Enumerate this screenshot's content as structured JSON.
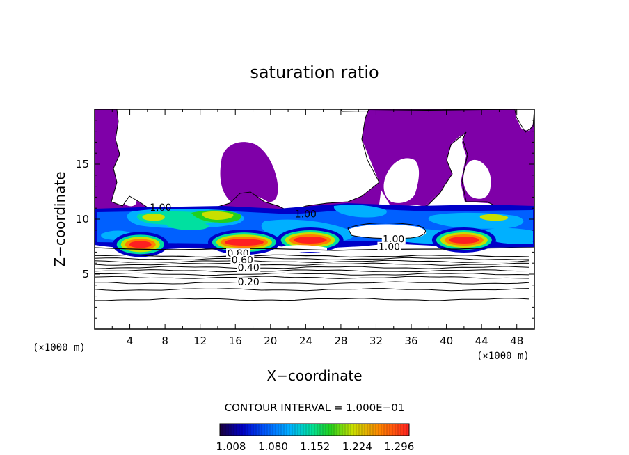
{
  "chart_data": {
    "type": "heatmap",
    "title": "saturation ratio",
    "xlabel": "X−coordinate",
    "ylabel": "Z−coordinate",
    "x_unit": "(×1000 m)",
    "y_unit": "(×1000 m)",
    "xlim": [
      0,
      50
    ],
    "ylim": [
      0,
      20
    ],
    "x_ticks": [
      4,
      8,
      12,
      16,
      20,
      24,
      28,
      32,
      36,
      40,
      44,
      48
    ],
    "y_ticks": [
      5,
      10,
      15
    ],
    "contour_interval_text": "CONTOUR INTERVAL = 1.000E−01",
    "colorbar": {
      "min": 1.008,
      "max": 1.332,
      "tick_values": [
        1.008,
        1.08,
        1.152,
        1.224,
        1.296
      ],
      "tick_labels": [
        "1.008",
        "1.080",
        "1.152",
        "1.224",
        "1.296"
      ]
    },
    "contour_labels": [
      {
        "text": "1.00",
        "x": 7.5,
        "z": 10.9
      },
      {
        "text": "1.00",
        "x": 24.0,
        "z": 10.3
      },
      {
        "text": "1.00",
        "x": 34.0,
        "z": 8.0
      },
      {
        "text": "1.00",
        "x": 33.5,
        "z": 7.3
      },
      {
        "text": "0.80",
        "x": 16.3,
        "z": 6.7
      },
      {
        "text": "0.60",
        "x": 16.8,
        "z": 6.1
      },
      {
        "text": "0.40",
        "x": 17.5,
        "z": 5.4
      },
      {
        "text": "0.20",
        "x": 17.5,
        "z": 4.1
      }
    ],
    "supersaturated_cores": [
      {
        "x": 5.2,
        "z": 7.7,
        "peak": 1.3
      },
      {
        "x": 17.0,
        "z": 7.9,
        "peak": 1.31
      },
      {
        "x": 24.5,
        "z": 8.1,
        "peak": 1.29
      },
      {
        "x": 42.0,
        "z": 8.1,
        "peak": 1.3
      }
    ],
    "subsaturated_contour_levels": [
      0.2,
      0.4,
      0.6,
      0.8
    ]
  },
  "colors": {
    "purple_region": "#7f00a8",
    "axes": "#000000",
    "colormap": [
      "#1a003c",
      "#0000c8",
      "#0060ff",
      "#00b0ff",
      "#00e0a0",
      "#20d020",
      "#c8e000",
      "#ff8000",
      "#ff2020"
    ]
  }
}
